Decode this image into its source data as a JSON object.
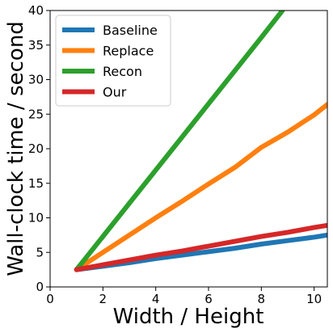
{
  "chart_data": {
    "type": "line",
    "xlabel": "Width / Height",
    "ylabel": "Wall-clock time / second",
    "xlim": [
      0,
      10.5
    ],
    "ylim": [
      0,
      40
    ],
    "xticks": [
      0,
      2,
      4,
      6,
      8,
      10
    ],
    "yticks": [
      0,
      5,
      10,
      15,
      20,
      25,
      30,
      35,
      40
    ],
    "legend_position": "top-left",
    "grid": false,
    "series": [
      {
        "name": "Baseline",
        "color": "#1f77b4",
        "x": [
          1,
          2,
          3,
          4,
          5,
          6,
          7,
          8,
          9,
          10,
          10.5
        ],
        "y": [
          2.5,
          3.0,
          3.5,
          4.1,
          4.6,
          5.1,
          5.6,
          6.2,
          6.7,
          7.2,
          7.5
        ]
      },
      {
        "name": "Replace",
        "color": "#ff7f0e",
        "x": [
          1,
          2,
          3,
          4,
          5,
          6,
          7,
          8,
          9,
          10,
          10.5
        ],
        "y": [
          2.5,
          5.0,
          7.5,
          10.0,
          12.4,
          14.9,
          17.3,
          20.2,
          22.4,
          24.9,
          26.4
        ]
      },
      {
        "name": "Recon",
        "color": "#2ca02c",
        "x": [
          1,
          2,
          3,
          4,
          5,
          6,
          7,
          8,
          8.8
        ],
        "y": [
          2.5,
          7.3,
          12.1,
          16.9,
          21.7,
          26.5,
          31.3,
          36.1,
          40.0
        ]
      },
      {
        "name": "Our",
        "color": "#d62728",
        "x": [
          1,
          2,
          3,
          4,
          5,
          6,
          7,
          8,
          9,
          10,
          10.5
        ],
        "y": [
          2.5,
          3.2,
          3.9,
          4.6,
          5.2,
          5.9,
          6.6,
          7.3,
          7.9,
          8.6,
          8.9
        ]
      }
    ]
  }
}
